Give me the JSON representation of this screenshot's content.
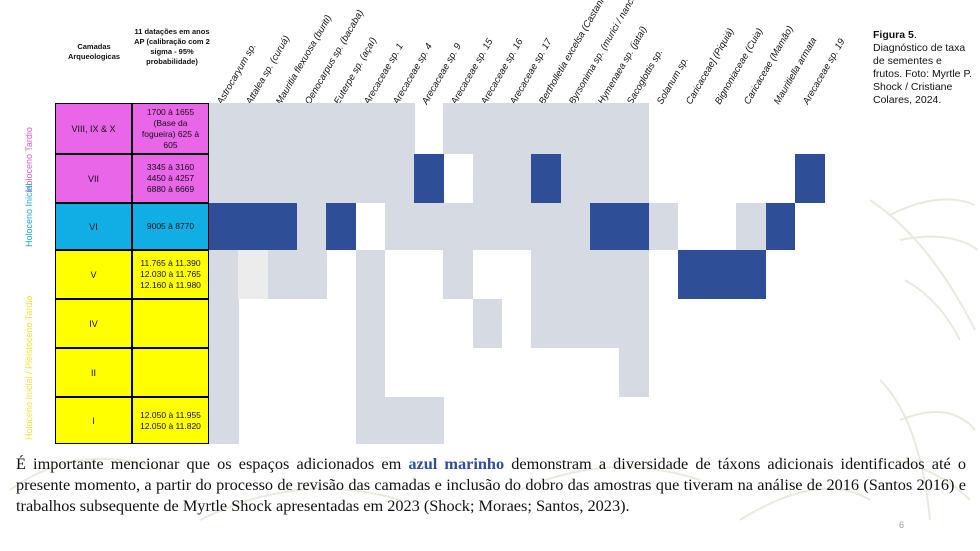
{
  "header": {
    "layers_title": "Camadas Arqueologicas",
    "dates_title": "11 datações em anos AP (calibração com 2 sigma - 95% probabilidade)"
  },
  "taxa": [
    "Astrocaryum sp.",
    "Attalea sp. (curuá)",
    "Mauritia flexuosa  (buriti)",
    "Oenocarpus sp. (bacaba)",
    "Euterpe sp. (açaí)",
    "Arecaceae sp. 1",
    "Arecaceae sp. 4",
    "Arecaceae sp. 9",
    "Arecaceae sp. 15",
    "Arecaceae sp. 16",
    "Arecaceae sp. 17",
    "Bertholletia excelsa (Castanha)",
    "Byrsonima sp. (murici / nance)",
    "Hymenaea sp. (jataí)",
    "Sacoglottis sp.",
    "Solanum sp.",
    "Caricaceae] (Piquiá)",
    "Bignoniaceae (Cuia)",
    "Caricaceae (Mamão)",
    "Mauritiella armata",
    "Arecaceae sp. 19"
  ],
  "layers": [
    {
      "label": "VIII, IX & X",
      "dates": "1700 à 1655\n(Base da\nfogueira)  625 à\n605"
    },
    {
      "label": "VII",
      "dates": "3345 à 3160\n4450 à 4257\n6880 à 6669"
    },
    {
      "label": "VI",
      "dates": "9005 à 8770"
    },
    {
      "label": "V",
      "dates": "11.765 à 11.390\n12.030 à 11.765\n12.160 à 11.980"
    },
    {
      "label": "IV",
      "dates": ""
    },
    {
      "label": "II",
      "dates": ""
    },
    {
      "label": "I",
      "dates": "12.050 à 11.955\n12.050 à 11.820"
    }
  ],
  "periods": [
    {
      "label": "Holoceno Tardio",
      "color": "#d65bd6"
    },
    {
      "label": "Holoceno Inicial",
      "color": "#1fa9d8"
    },
    {
      "label": "Holoceno Inicial / Pleistoceno Tardio",
      "color": "#f2e23a"
    }
  ],
  "colors": {
    "period_late": "#e966e9",
    "period_early": "#11aee5",
    "period_transition": "#ffff00",
    "presence": "#d5dae3",
    "added": "#2e4f98",
    "faint": "#ececec"
  },
  "matrix": [
    [
      1,
      1,
      1,
      1,
      1,
      1,
      1,
      0,
      1,
      1,
      1,
      1,
      1,
      1,
      1,
      0,
      0,
      0,
      0,
      0,
      0
    ],
    [
      1,
      1,
      1,
      1,
      1,
      1,
      1,
      2,
      0,
      1,
      1,
      2,
      1,
      1,
      1,
      0,
      0,
      0,
      0,
      0,
      2
    ],
    [
      2,
      2,
      2,
      1,
      2,
      0,
      1,
      1,
      1,
      1,
      1,
      1,
      1,
      2,
      2,
      1,
      0,
      0,
      1,
      2,
      0
    ],
    [
      1,
      3,
      1,
      1,
      0,
      1,
      0,
      0,
      1,
      0,
      0,
      1,
      1,
      1,
      1,
      0,
      2,
      2,
      2,
      0,
      0
    ],
    [
      1,
      0,
      0,
      0,
      0,
      1,
      0,
      0,
      0,
      1,
      0,
      1,
      1,
      1,
      1,
      0,
      0,
      0,
      0,
      0,
      0
    ],
    [
      1,
      0,
      0,
      0,
      0,
      1,
      0,
      0,
      0,
      0,
      0,
      0,
      0,
      0,
      1,
      0,
      0,
      0,
      0,
      0,
      0
    ],
    [
      1,
      0,
      0,
      0,
      0,
      1,
      1,
      1,
      0,
      0,
      0,
      0,
      0,
      0,
      0,
      0,
      0,
      0,
      0,
      0,
      0
    ]
  ],
  "caption": {
    "title": "Figura 5",
    "text": ". Diagnóstico de taxa de sementes e frutos. Foto: Myrtle P. Shock / Cristiane Colares, 2024."
  },
  "body": {
    "before": "É importante mencionar que os espaços adicionados em ",
    "highlight": "azul marinho",
    "after": " demonstram a diversidade de táxons adicionais identificados até o presente momento, a partir do processo de revisão das camadas e inclusão do dobro das amostras que tiveram na análise de 2016 (Santos 2016) e trabalhos subsequente de Myrtle Shock apresentadas em 2023 (Shock; Moraes; Santos, 2023)."
  },
  "page_number": "6"
}
